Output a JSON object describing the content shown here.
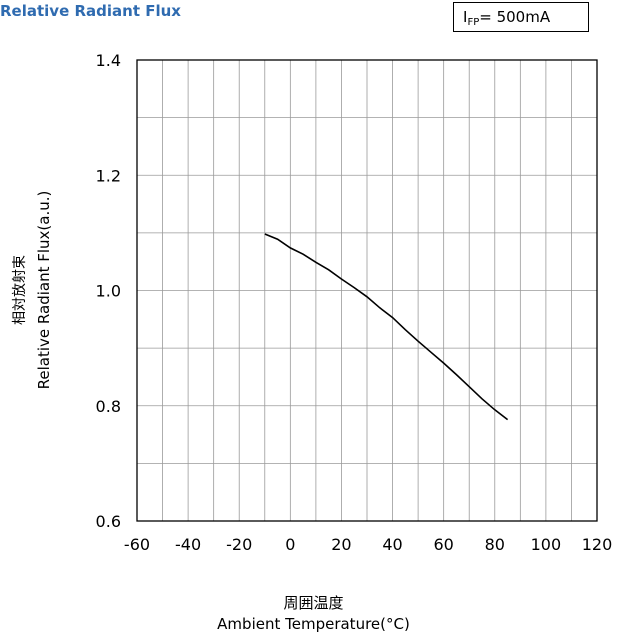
{
  "header": {
    "title": "Relative Radiant Flux",
    "condition_main": "I",
    "condition_sub": "FP",
    "condition_rest": "= 500mA"
  },
  "axes": {
    "xlabel_jp": "周囲温度",
    "xlabel_en": "Ambient Temperature(°C)",
    "ylabel_jp": "相対放射束",
    "ylabel_en": "Relative Radiant Flux(a.u.)"
  },
  "chart_data": {
    "type": "line",
    "title": "Relative Radiant Flux",
    "xlabel": "Ambient Temperature(°C)",
    "ylabel": "Relative Radiant Flux(a.u.)",
    "xlim": [
      -60,
      120
    ],
    "ylim": [
      0.6,
      1.4
    ],
    "xticks": [
      "-60",
      "-40",
      "-20",
      "0",
      "20",
      "40",
      "60",
      "80",
      "100",
      "120"
    ],
    "yticks": [
      "0.6",
      "0.8",
      "1.0",
      "1.2",
      "1.4"
    ],
    "grid": true,
    "series": [
      {
        "name": "",
        "x": [
          -10,
          -5,
          0,
          5,
          10,
          15,
          20,
          25,
          30,
          35,
          40,
          45,
          50,
          55,
          60,
          65,
          70,
          75,
          80,
          85
        ],
        "y": [
          1.098,
          1.089,
          1.074,
          1.063,
          1.049,
          1.036,
          1.02,
          1.005,
          0.989,
          0.97,
          0.953,
          0.932,
          0.912,
          0.893,
          0.874,
          0.854,
          0.833,
          0.812,
          0.793,
          0.776
        ]
      }
    ]
  }
}
